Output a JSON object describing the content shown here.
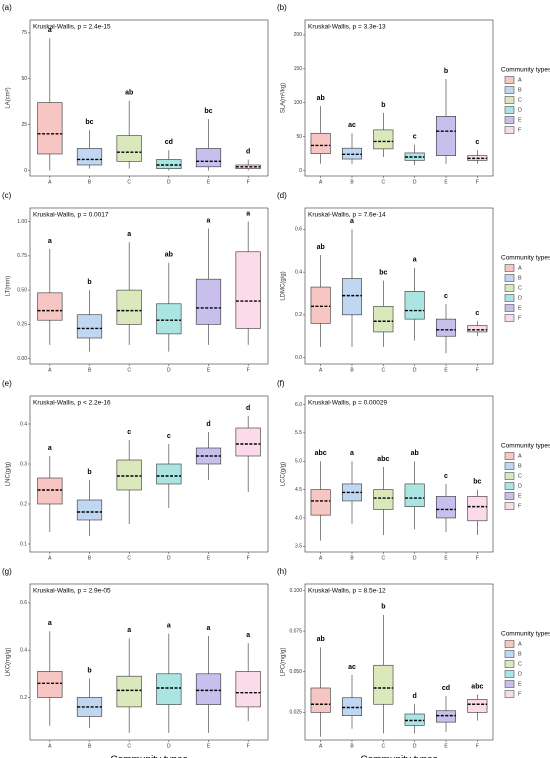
{
  "chart_data": [
    {
      "type": "box",
      "panel": "(a)",
      "title": "Kruskal-Wallis, p = 2.4e-15",
      "y_label": "LA(cm²)",
      "categories": [
        "A",
        "B",
        "C",
        "D",
        "E",
        "F"
      ],
      "colors": [
        "#f5b3ad",
        "#a9c9ec",
        "#cfe0a6",
        "#8fdcd8",
        "#b6aae6",
        "#f9cfe2"
      ],
      "ylim": [
        -3,
        82
      ],
      "yticks": [
        0,
        25,
        50,
        75
      ],
      "boxes": [
        {
          "min": 0,
          "q1": 9,
          "median": 20,
          "q3": 37,
          "max": 72
        },
        {
          "min": 1,
          "q1": 3,
          "median": 6,
          "q3": 12,
          "max": 22
        },
        {
          "min": 1,
          "q1": 5,
          "median": 10,
          "q3": 19,
          "max": 38
        },
        {
          "min": 0,
          "q1": 1,
          "median": 3,
          "q3": 6,
          "max": 11
        },
        {
          "min": 0,
          "q1": 2,
          "median": 5,
          "q3": 12,
          "max": 28
        },
        {
          "min": 0,
          "q1": 1,
          "median": 2,
          "q3": 3,
          "max": 6
        }
      ],
      "letters": [
        "a",
        "bc",
        "ab",
        "cd",
        "bc",
        "d"
      ]
    },
    {
      "type": "box",
      "panel": "(b)",
      "title": "Kruskal-Wallis, p = 3.3e-13",
      "y_label": "SLA(m²/kg)",
      "categories": [
        "A",
        "B",
        "C",
        "D",
        "E",
        "F"
      ],
      "colors": [
        "#f5b3ad",
        "#a9c9ec",
        "#cfe0a6",
        "#8fdcd8",
        "#b6aae6",
        "#f9cfe2"
      ],
      "ylim": [
        -8,
        222
      ],
      "yticks": [
        0,
        50,
        100,
        150,
        200
      ],
      "boxes": [
        {
          "min": 10,
          "q1": 25,
          "median": 37,
          "q3": 55,
          "max": 95
        },
        {
          "min": 10,
          "q1": 17,
          "median": 24,
          "q3": 33,
          "max": 55
        },
        {
          "min": 20,
          "q1": 32,
          "median": 43,
          "q3": 60,
          "max": 85
        },
        {
          "min": 8,
          "q1": 15,
          "median": 20,
          "q3": 26,
          "max": 38
        },
        {
          "min": 10,
          "q1": 22,
          "median": 58,
          "q3": 80,
          "max": 135
        },
        {
          "min": 10,
          "q1": 15,
          "median": 18,
          "q3": 22,
          "max": 30
        }
      ],
      "letters": [
        "ab",
        "ac",
        "b",
        "c",
        "b",
        "c"
      ],
      "legend_title": "Community types"
    },
    {
      "type": "box",
      "panel": "(c)",
      "title": "Kruskal-Wallis, p = 0.0017",
      "y_label": "LT(mm)",
      "categories": [
        "A",
        "B",
        "C",
        "D",
        "E",
        "F"
      ],
      "colors": [
        "#f5b3ad",
        "#a9c9ec",
        "#cfe0a6",
        "#8fdcd8",
        "#b6aae6",
        "#f9cfe2"
      ],
      "ylim": [
        -0.04,
        1.1
      ],
      "yticks": [
        {
          "value": 0,
          "label": "0.00"
        },
        0.25,
        {
          "value": 0.5,
          "label": "0.50"
        },
        0.75,
        {
          "value": 1,
          "label": "1.00"
        }
      ],
      "boxes": [
        {
          "min": 0.1,
          "q1": 0.28,
          "median": 0.35,
          "q3": 0.48,
          "max": 0.8
        },
        {
          "min": 0.05,
          "q1": 0.15,
          "median": 0.22,
          "q3": 0.32,
          "max": 0.5
        },
        {
          "min": 0.1,
          "q1": 0.25,
          "median": 0.35,
          "q3": 0.5,
          "max": 0.85
        },
        {
          "min": 0.05,
          "q1": 0.18,
          "median": 0.28,
          "q3": 0.4,
          "max": 0.7
        },
        {
          "min": 0.1,
          "q1": 0.25,
          "median": 0.37,
          "q3": 0.58,
          "max": 0.95
        },
        {
          "min": 0.1,
          "q1": 0.22,
          "median": 0.42,
          "q3": 0.78,
          "max": 1.0
        }
      ],
      "letters": [
        "a",
        "b",
        "a",
        "ab",
        "a",
        "a"
      ]
    },
    {
      "type": "box",
      "panel": "(d)",
      "title": "Kruskal-Wallis, p = 7.6e-14",
      "y_label": "LDMC(g/g)",
      "categories": [
        "A",
        "B",
        "C",
        "D",
        "E",
        "F"
      ],
      "colors": [
        "#f5b3ad",
        "#a9c9ec",
        "#cfe0a6",
        "#8fdcd8",
        "#b6aae6",
        "#f9cfe2"
      ],
      "ylim": [
        -0.03,
        0.7
      ],
      "yticks": [
        {
          "value": 0,
          "label": "0.0"
        },
        0.2,
        0.4,
        0.6
      ],
      "boxes": [
        {
          "min": 0.05,
          "q1": 0.16,
          "median": 0.24,
          "q3": 0.33,
          "max": 0.48
        },
        {
          "min": 0.05,
          "q1": 0.2,
          "median": 0.29,
          "q3": 0.37,
          "max": 0.6
        },
        {
          "min": 0.05,
          "q1": 0.12,
          "median": 0.17,
          "q3": 0.24,
          "max": 0.36
        },
        {
          "min": 0.08,
          "q1": 0.18,
          "median": 0.22,
          "q3": 0.31,
          "max": 0.42
        },
        {
          "min": 0.02,
          "q1": 0.1,
          "median": 0.13,
          "q3": 0.18,
          "max": 0.25
        },
        {
          "min": 0.1,
          "q1": 0.12,
          "median": 0.13,
          "q3": 0.15,
          "max": 0.17
        }
      ],
      "letters": [
        "ab",
        "a",
        "bc",
        "a",
        "c",
        "c"
      ],
      "legend_title": "Community types"
    },
    {
      "type": "box",
      "panel": "(e)",
      "title": "Kruskal-Wallis, p < 2.2e-16",
      "y_label": "LNC(g/g)",
      "categories": [
        "A",
        "B",
        "C",
        "D",
        "E",
        "F"
      ],
      "colors": [
        "#f5b3ad",
        "#a9c9ec",
        "#cfe0a6",
        "#8fdcd8",
        "#b6aae6",
        "#f9cfe2"
      ],
      "ylim": [
        0.08,
        0.47
      ],
      "yticks": [
        0.1,
        0.2,
        0.3,
        0.4
      ],
      "boxes": [
        {
          "min": 0.13,
          "q1": 0.2,
          "median": 0.235,
          "q3": 0.265,
          "max": 0.32
        },
        {
          "min": 0.12,
          "q1": 0.16,
          "median": 0.18,
          "q3": 0.21,
          "max": 0.26
        },
        {
          "min": 0.15,
          "q1": 0.235,
          "median": 0.27,
          "q3": 0.31,
          "max": 0.36
        },
        {
          "min": 0.19,
          "q1": 0.25,
          "median": 0.27,
          "q3": 0.3,
          "max": 0.35
        },
        {
          "min": 0.26,
          "q1": 0.3,
          "median": 0.32,
          "q3": 0.34,
          "max": 0.38
        },
        {
          "min": 0.23,
          "q1": 0.32,
          "median": 0.35,
          "q3": 0.39,
          "max": 0.42
        }
      ],
      "letters": [
        "a",
        "b",
        "c",
        "c",
        "d",
        "d"
      ]
    },
    {
      "type": "box",
      "panel": "(f)",
      "title": "Kruskal-Wallis, p = 0.00029",
      "y_label": "LCC(g/g)",
      "categories": [
        "A",
        "B",
        "C",
        "D",
        "E",
        "F"
      ],
      "colors": [
        "#f5b3ad",
        "#a9c9ec",
        "#cfe0a6",
        "#8fdcd8",
        "#b6aae6",
        "#f9cfe2"
      ],
      "ylim": [
        3.4,
        6.15
      ],
      "yticks": [
        3.5,
        {
          "value": 4,
          "label": "4.0"
        },
        4.5,
        {
          "value": 5,
          "label": "5.0"
        },
        5.5,
        {
          "value": 6,
          "label": "6.0"
        }
      ],
      "boxes": [
        {
          "min": 3.6,
          "q1": 4.05,
          "median": 4.3,
          "q3": 4.5,
          "max": 5.0
        },
        {
          "min": 3.9,
          "q1": 4.3,
          "median": 4.45,
          "q3": 4.6,
          "max": 5.0
        },
        {
          "min": 3.7,
          "q1": 4.15,
          "median": 4.35,
          "q3": 4.5,
          "max": 4.9
        },
        {
          "min": 3.8,
          "q1": 4.2,
          "median": 4.35,
          "q3": 4.6,
          "max": 5.0
        },
        {
          "min": 3.75,
          "q1": 4.0,
          "median": 4.15,
          "q3": 4.38,
          "max": 4.6
        },
        {
          "min": 3.7,
          "q1": 3.95,
          "median": 4.2,
          "q3": 4.38,
          "max": 4.5
        }
      ],
      "letters": [
        "abc",
        "a",
        "abc",
        "ab",
        "c",
        "bc"
      ],
      "legend_title": "Community types"
    },
    {
      "type": "box",
      "panel": "(g)",
      "title": "Kruskal-Wallis, p = 2.9e-05",
      "y_label": "LKC(mg/g)",
      "x_label": "Community types",
      "categories": [
        "A",
        "B",
        "C",
        "D",
        "E",
        "F"
      ],
      "colors": [
        "#f5b3ad",
        "#a9c9ec",
        "#cfe0a6",
        "#8fdcd8",
        "#b6aae6",
        "#f9cfe2"
      ],
      "ylim": [
        0.02,
        0.68
      ],
      "yticks": [
        0.2,
        0.4,
        0.6
      ],
      "boxes": [
        {
          "min": 0.08,
          "q1": 0.2,
          "median": 0.26,
          "q3": 0.31,
          "max": 0.48
        },
        {
          "min": 0.07,
          "q1": 0.12,
          "median": 0.16,
          "q3": 0.2,
          "max": 0.28
        },
        {
          "min": 0.05,
          "q1": 0.16,
          "median": 0.23,
          "q3": 0.29,
          "max": 0.45
        },
        {
          "min": 0.05,
          "q1": 0.17,
          "median": 0.24,
          "q3": 0.3,
          "max": 0.47
        },
        {
          "min": 0.05,
          "q1": 0.17,
          "median": 0.23,
          "q3": 0.3,
          "max": 0.46
        },
        {
          "min": 0.1,
          "q1": 0.16,
          "median": 0.22,
          "q3": 0.31,
          "max": 0.43
        }
      ],
      "letters": [
        "a",
        "b",
        "a",
        "a",
        "a",
        "a"
      ]
    },
    {
      "type": "box",
      "panel": "(h)",
      "title": "Kruskal-Wallis, p = 8.5e-12",
      "y_label": "LPC(mg/g)",
      "x_label": "Community types",
      "categories": [
        "A",
        "B",
        "C",
        "D",
        "E",
        "F"
      ],
      "colors": [
        "#f5b3ad",
        "#a9c9ec",
        "#cfe0a6",
        "#8fdcd8",
        "#b6aae6",
        "#f9cfe2"
      ],
      "ylim": [
        0.008,
        0.104
      ],
      "yticks": [
        0.025,
        {
          "value": 0.05,
          "label": "0.050"
        },
        0.075,
        {
          "value": 0.1,
          "label": "0.100"
        }
      ],
      "boxes": [
        {
          "min": 0.01,
          "q1": 0.025,
          "median": 0.03,
          "q3": 0.04,
          "max": 0.065
        },
        {
          "min": 0.015,
          "q1": 0.023,
          "median": 0.028,
          "q3": 0.034,
          "max": 0.048
        },
        {
          "min": 0.012,
          "q1": 0.03,
          "median": 0.04,
          "q3": 0.054,
          "max": 0.085
        },
        {
          "min": 0.012,
          "q1": 0.017,
          "median": 0.02,
          "q3": 0.024,
          "max": 0.03
        },
        {
          "min": 0.013,
          "q1": 0.019,
          "median": 0.023,
          "q3": 0.026,
          "max": 0.035
        },
        {
          "min": 0.02,
          "q1": 0.025,
          "median": 0.03,
          "q3": 0.033,
          "max": 0.036
        }
      ],
      "letters": [
        "ab",
        "ac",
        "b",
        "d",
        "cd",
        "abc"
      ],
      "legend_title": "Community types"
    }
  ]
}
